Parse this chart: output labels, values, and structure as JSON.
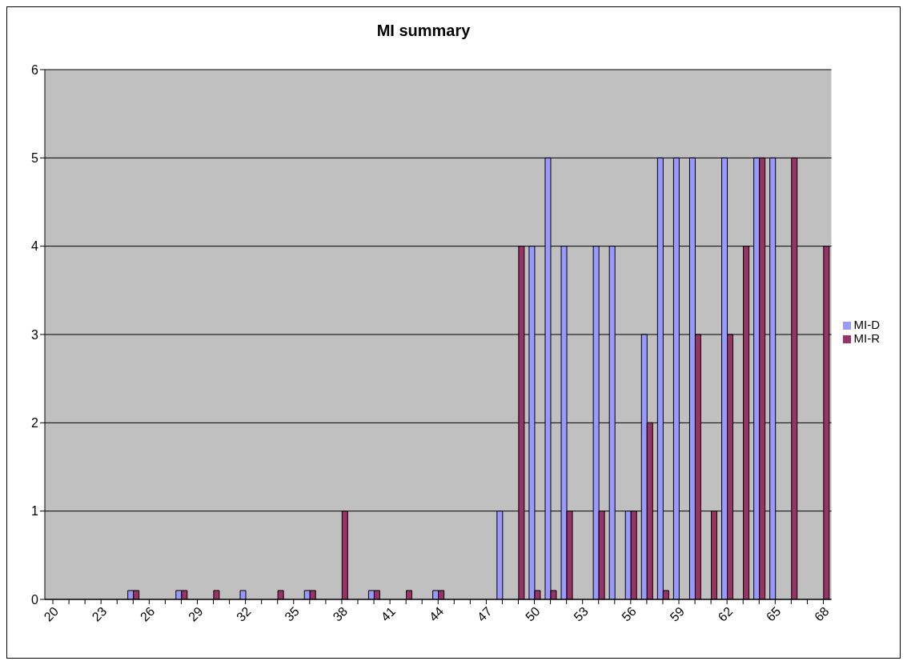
{
  "chart_data": {
    "type": "bar",
    "title": "MI summary",
    "categories": [
      "20",
      null,
      null,
      "23",
      null,
      null,
      "26",
      null,
      null,
      "29",
      null,
      null,
      "32",
      null,
      null,
      "35",
      null,
      null,
      "38",
      null,
      null,
      "41",
      null,
      null,
      "44",
      null,
      null,
      "47",
      null,
      null,
      "50",
      null,
      null,
      "53",
      null,
      null,
      "56",
      null,
      null,
      "59",
      null,
      null,
      "62",
      null,
      null,
      "65",
      null,
      null,
      "68"
    ],
    "series": [
      {
        "name": "MI-D",
        "color": "#9999ff",
        "values": [
          null,
          null,
          null,
          null,
          null,
          0.1,
          null,
          null,
          0.1,
          null,
          null,
          null,
          0.1,
          null,
          null,
          null,
          0.1,
          null,
          null,
          null,
          0.1,
          null,
          null,
          null,
          0.1,
          null,
          null,
          null,
          1,
          null,
          4,
          5,
          4,
          null,
          4,
          4,
          1,
          3,
          5,
          5,
          5,
          null,
          5,
          null,
          5,
          5,
          null,
          null,
          null
        ]
      },
      {
        "name": "MI-R",
        "color": "#993366",
        "values": [
          null,
          null,
          null,
          null,
          null,
          0.1,
          null,
          null,
          0.1,
          null,
          0.1,
          null,
          null,
          null,
          0.1,
          null,
          0.1,
          null,
          1,
          null,
          0.1,
          null,
          0.1,
          null,
          0.1,
          null,
          null,
          null,
          null,
          4,
          0.1,
          0.1,
          1,
          null,
          1,
          null,
          1,
          2,
          0.1,
          null,
          3,
          1,
          3,
          4,
          5,
          null,
          5,
          null,
          4
        ]
      }
    ],
    "ylim": [
      0,
      6
    ],
    "yticks": [
      0,
      1,
      2,
      3,
      4,
      5,
      6
    ],
    "grid": "y",
    "legend": "right"
  }
}
